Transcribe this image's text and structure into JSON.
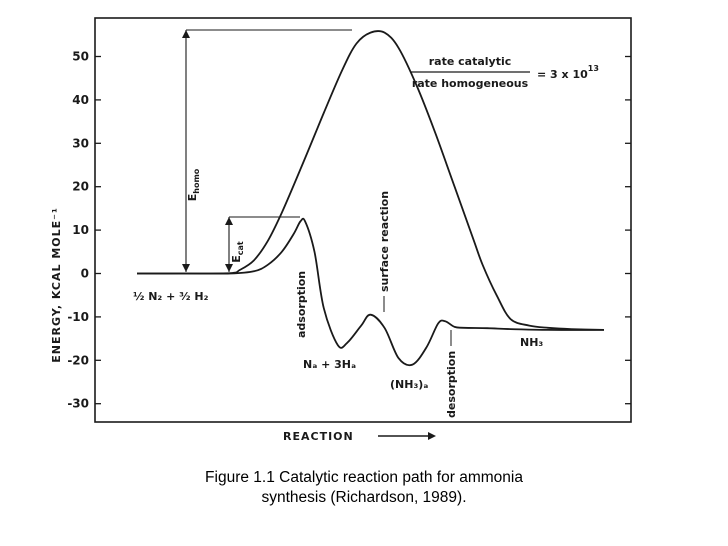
{
  "chart_data": {
    "type": "line",
    "title": "",
    "xlabel": "REACTION",
    "ylabel": "ENERGY, KCAL MOLE⁻¹",
    "ylim": [
      -32,
      60
    ],
    "yticks": [
      -30,
      -20,
      -10,
      0,
      10,
      20,
      30,
      40,
      50
    ],
    "grid": false,
    "series": [
      {
        "x": [
          0.0,
          0.1,
          0.2,
          0.22,
          0.25,
          0.28,
          0.31,
          0.35,
          0.4,
          0.44,
          0.47,
          0.5,
          0.53,
          0.56,
          0.6,
          0.64,
          0.68,
          0.72,
          0.74,
          0.77,
          0.8,
          0.84,
          0.88,
          0.93,
          1.0
        ],
        "y": [
          0,
          0,
          0.1,
          0.8,
          3,
          7.5,
          14,
          24,
          37,
          47,
          53,
          55.5,
          55.5,
          52,
          43,
          32,
          20,
          8,
          2,
          -5,
          -10.5,
          -12,
          -12.5,
          -12.8,
          -13
        ]
      },
      {
        "x": [
          0.0,
          0.1,
          0.2,
          0.25,
          0.28,
          0.31,
          0.335,
          0.35,
          0.36,
          0.38,
          0.4,
          0.43,
          0.45,
          0.48,
          0.5,
          0.53,
          0.56,
          0.59,
          0.62,
          0.645,
          0.66,
          0.68,
          0.7,
          0.75,
          0.8,
          0.88,
          1.0
        ],
        "y": [
          0,
          0,
          0,
          0.5,
          2,
          5,
          9,
          12,
          12,
          5,
          -8,
          -16.5,
          -16,
          -12,
          -9.5,
          -12.5,
          -19.5,
          -21,
          -17,
          -11.5,
          -11,
          -12.3,
          -12.5,
          -12.6,
          -12.8,
          -13,
          -13
        ]
      }
    ],
    "annotations": {
      "e_homo": "E",
      "e_homo_sub": "homo",
      "e_cat": "E",
      "e_cat_sub": "cat",
      "rate_numerator": "rate catalytic",
      "rate_denominator": "rate homogeneous",
      "rate_equals": "= 3 x 10",
      "rate_exponent": "13",
      "surface_reaction": "surface reaction",
      "adsorption": "adsorption",
      "desorption": "desorption",
      "reactants": "½ N₂ + ³⁄₂ H₂",
      "adsorbed_species": "Nₐ + 3Hₐ",
      "nh3_adsorbed": "(NH₃)ₐ",
      "product": "NH₃"
    }
  },
  "caption": {
    "line1": "Figure 1.1 Catalytic reaction path for ammonia",
    "line2": "synthesis (Richardson, 1989)."
  }
}
